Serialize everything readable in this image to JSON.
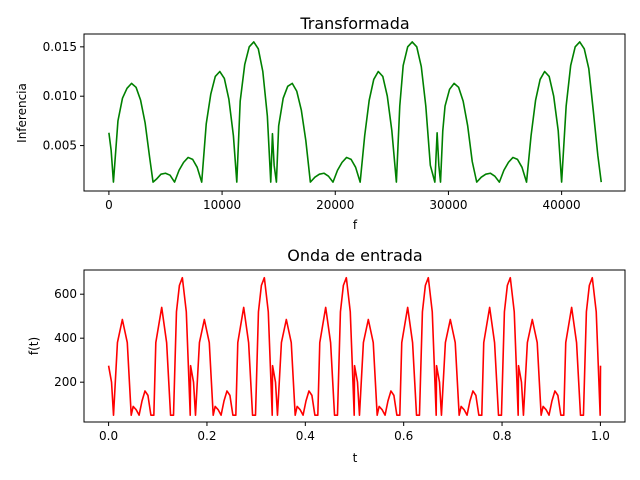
{
  "chart_data": [
    {
      "type": "line",
      "title": "Transformada",
      "xlabel": "f",
      "ylabel": "Inferencia",
      "xlim": [
        -2200,
        45600
      ],
      "ylim": [
        0.0004,
        0.0163
      ],
      "xticks": [
        0,
        10000,
        20000,
        30000,
        40000
      ],
      "xtick_labels": [
        "0",
        "10000",
        "20000",
        "30000",
        "40000"
      ],
      "yticks": [
        0.005,
        0.01,
        0.015
      ],
      "ytick_labels": [
        "0.005",
        "0.010",
        "0.015"
      ],
      "grid": false,
      "series": [
        {
          "color": "#008000",
          "x": [
            0,
            200,
            400,
            800,
            1200,
            1600,
            2000,
            2400,
            2800,
            3200,
            3600,
            3900,
            4200,
            4600,
            5000,
            5400,
            5800,
            6200,
            6600,
            7000,
            7400,
            7800,
            8200,
            8600,
            9000,
            9400,
            9800,
            10200,
            10600,
            11000,
            11300,
            11600,
            12000,
            12400,
            12800,
            13200,
            13600,
            14000,
            14300,
            14450,
            14600,
            14800,
            15000,
            15400,
            15800,
            16200,
            16600,
            17000,
            17400,
            17800,
            18200,
            18600,
            19000,
            19400,
            19800,
            20200,
            20600,
            21000,
            21400,
            21800,
            22200,
            22600,
            23000,
            23400,
            23800,
            24200,
            24600,
            25000,
            25400,
            25700,
            26000,
            26400,
            26800,
            27200,
            27600,
            28000,
            28400,
            28800,
            29000,
            29150,
            29300,
            29500,
            29700,
            30100,
            30500,
            30900,
            31300,
            31700,
            32100,
            32500,
            32900,
            33300,
            33700,
            34100,
            34500,
            34900,
            35300,
            35700,
            36100,
            36500,
            36900,
            37300,
            37700,
            38100,
            38500,
            38900,
            39300,
            39700,
            40000,
            40400,
            40800,
            41200,
            41600,
            42000,
            42400,
            42800,
            43200,
            43500
          ],
          "y": [
            0.0063,
            0.0045,
            0.0013,
            0.0075,
            0.0098,
            0.0108,
            0.0113,
            0.0109,
            0.0096,
            0.0073,
            0.0038,
            0.0013,
            0.0016,
            0.0021,
            0.0022,
            0.002,
            0.0013,
            0.0025,
            0.0033,
            0.0038,
            0.0036,
            0.0028,
            0.0013,
            0.0072,
            0.0102,
            0.012,
            0.0125,
            0.0118,
            0.0097,
            0.006,
            0.0013,
            0.0095,
            0.0132,
            0.015,
            0.0155,
            0.0148,
            0.0125,
            0.008,
            0.0013,
            0.0062,
            0.003,
            0.0013,
            0.007,
            0.0098,
            0.011,
            0.0113,
            0.0105,
            0.0086,
            0.0055,
            0.0013,
            0.0018,
            0.0021,
            0.0022,
            0.0019,
            0.0013,
            0.0025,
            0.0033,
            0.0038,
            0.0036,
            0.0028,
            0.0013,
            0.006,
            0.0096,
            0.0117,
            0.0125,
            0.012,
            0.01,
            0.0065,
            0.0013,
            0.009,
            0.0131,
            0.015,
            0.0155,
            0.015,
            0.013,
            0.009,
            0.003,
            0.0013,
            0.0063,
            0.003,
            0.0013,
            0.0065,
            0.009,
            0.0107,
            0.0113,
            0.0109,
            0.0095,
            0.007,
            0.0034,
            0.0013,
            0.0018,
            0.0021,
            0.0022,
            0.0019,
            0.0013,
            0.0025,
            0.0033,
            0.0038,
            0.0036,
            0.0028,
            0.0013,
            0.006,
            0.0096,
            0.0117,
            0.0125,
            0.012,
            0.01,
            0.0065,
            0.0013,
            0.009,
            0.0131,
            0.015,
            0.0155,
            0.0148,
            0.0128,
            0.0085,
            0.004,
            0.0013
          ]
        }
      ]
    },
    {
      "type": "line",
      "title": "Onda de entrada",
      "xlabel": "t",
      "ylabel": "f(t)",
      "xlim": [
        -0.05,
        1.05
      ],
      "ylim": [
        19,
        710
      ],
      "xticks": [
        0.0,
        0.2,
        0.4,
        0.6,
        0.8,
        1.0
      ],
      "xtick_labels": [
        "0.0",
        "0.2",
        "0.4",
        "0.6",
        "0.8",
        "1.0"
      ],
      "yticks": [
        200,
        400,
        600
      ],
      "ytick_labels": [
        "200",
        "400",
        "600"
      ],
      "grid": false,
      "series": [
        {
          "color": "#ff0000",
          "base_pattern": {
            "period": 0.1667,
            "x": [
              0.0,
              0.006,
              0.01,
              0.018,
              0.028,
              0.038,
              0.046,
              0.05,
              0.056,
              0.062,
              0.068,
              0.074,
              0.08,
              0.086,
              0.092,
              0.096,
              0.108,
              0.118,
              0.126,
              0.132,
              0.138,
              0.144,
              0.15,
              0.158,
              0.166,
              0.1667
            ],
            "y": [
              275,
              200,
              50,
              380,
              485,
              380,
              50,
              90,
              75,
              50,
              115,
              160,
              140,
              50,
              50,
              380,
              540,
              380,
              50,
              50,
              520,
              640,
              675,
              520,
              50,
              275
            ]
          },
          "repeat": 6
        }
      ]
    }
  ]
}
